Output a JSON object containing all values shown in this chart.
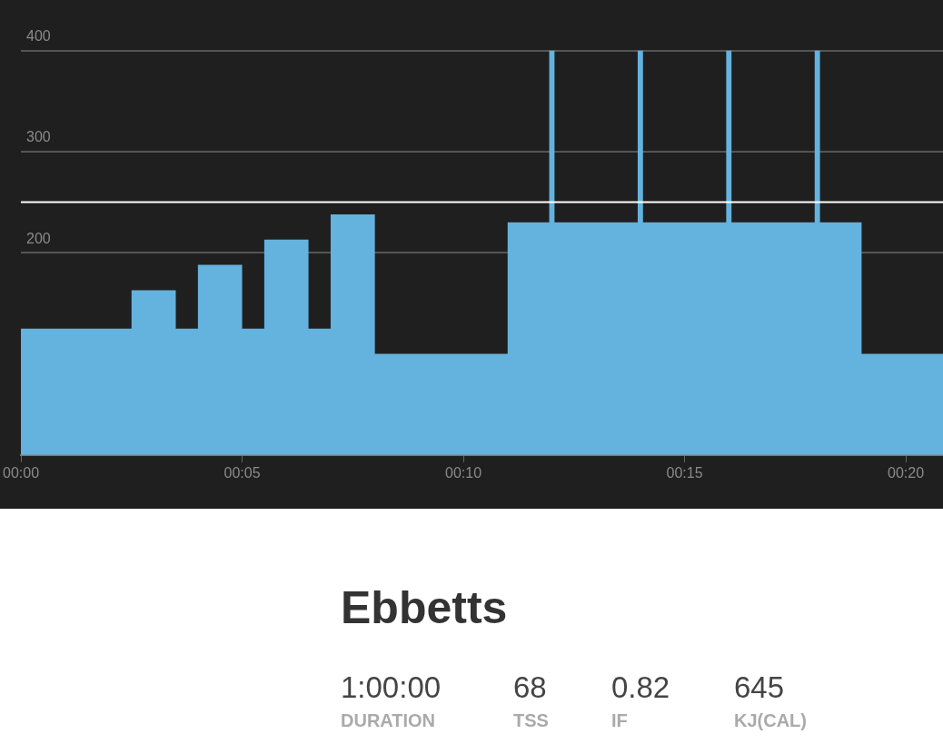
{
  "chart_data": {
    "type": "area",
    "title": "Ebbetts",
    "x": [
      0,
      2.5,
      2.5,
      3.5,
      3.5,
      4,
      4,
      5,
      5,
      5.5,
      5.5,
      6.5,
      6.5,
      7,
      7,
      8,
      8,
      11,
      11,
      11.94,
      11.94,
      12.06,
      12.06,
      13.94,
      13.94,
      14.06,
      14.06,
      15.94,
      15.94,
      16.06,
      16.06,
      17.94,
      17.94,
      18.06,
      18.06,
      19,
      19,
      20.84
    ],
    "series": [
      {
        "color": "#64b2de",
        "values": [
          125,
          125,
          163,
          163,
          125,
          125,
          188,
          188,
          125,
          125,
          213,
          213,
          125,
          125,
          238,
          238,
          100,
          100,
          230,
          230,
          400,
          400,
          230,
          230,
          400,
          400,
          230,
          230,
          400,
          400,
          230,
          230,
          400,
          400,
          230,
          230,
          100,
          100
        ]
      }
    ],
    "xlim": [
      0,
      20.84
    ],
    "xticks": [
      {
        "value": 0,
        "label": "00:00"
      },
      {
        "value": 5,
        "label": "00:05"
      },
      {
        "value": 10,
        "label": "00:10"
      },
      {
        "value": 15,
        "label": "00:15"
      },
      {
        "value": 20,
        "label": "00:20"
      }
    ],
    "ylim": [
      0,
      436
    ],
    "yticks": [
      200,
      300,
      400
    ],
    "grid": "y",
    "ref_lines": [
      {
        "axis": "y",
        "value": 250,
        "color": "#ffffff"
      }
    ],
    "annotations": [
      "1:00:00",
      "DURATION",
      "68",
      "TSS",
      "0.82",
      "IF",
      "645",
      "KJ(CAL)"
    ]
  }
}
